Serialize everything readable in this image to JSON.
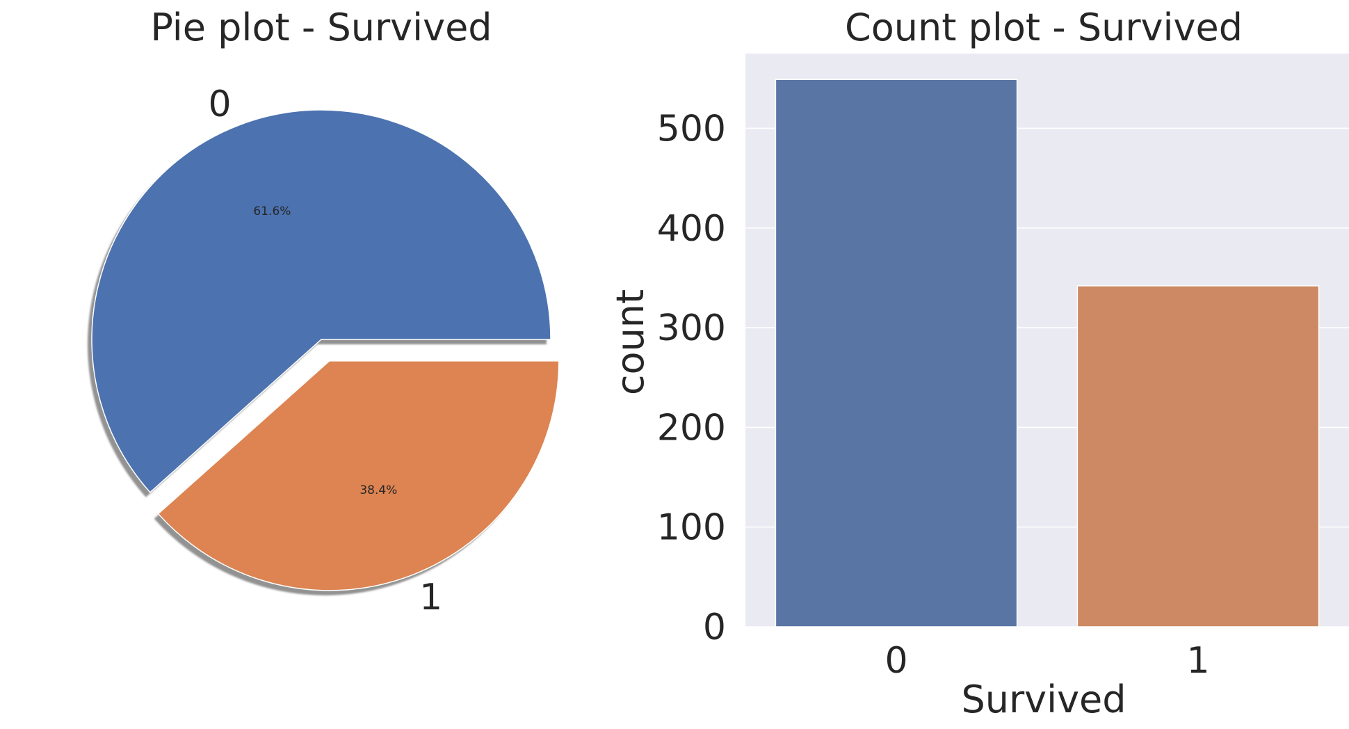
{
  "chart_data": [
    {
      "type": "pie",
      "title": "Pie plot - Survived",
      "labels": [
        "0",
        "1"
      ],
      "values": [
        61.6,
        38.4
      ],
      "pct_labels": [
        "61.6%",
        "38.4%"
      ],
      "explode": [
        0,
        0.1
      ],
      "shadow": true,
      "colors": [
        "#4c72b0",
        "#dd8452"
      ]
    },
    {
      "type": "bar",
      "title": "Count plot - Survived",
      "categories": [
        "0",
        "1"
      ],
      "values": [
        549,
        342
      ],
      "xlabel": "Survived",
      "ylabel": "count",
      "ylim": [
        0,
        575
      ],
      "yticks": [
        0,
        100,
        200,
        300,
        400,
        500
      ],
      "grid": true,
      "background": "#eaeaf2",
      "colors": [
        "#5975a4",
        "#cc8963"
      ]
    }
  ]
}
